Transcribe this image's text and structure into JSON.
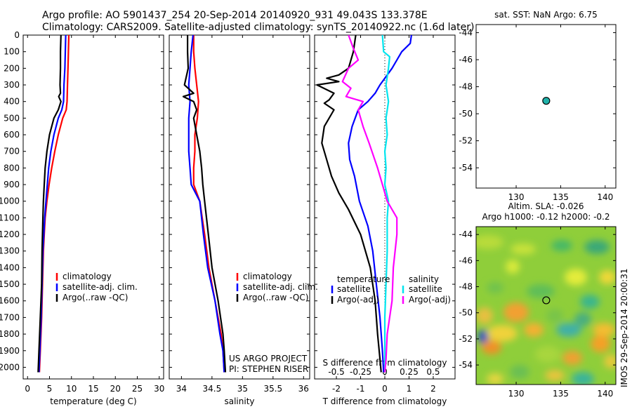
{
  "header": {
    "line1": "Argo profile: AO 5901437_254 20-Sep-2014 20140920_931 49.043S 133.378E",
    "line2": "Climatology: CARS2009. Satellite-adjusted climatology: synTS_20140922.nc (1.6d later)"
  },
  "colors": {
    "climatology": "#ff0000",
    "satellite": "#0000ff",
    "argo": "#000000",
    "sal_satellite": "#00e5ee",
    "sal_argo": "#ff00ff",
    "marker": "#20b2aa"
  },
  "depth_ticks": [
    "0",
    "100",
    "200",
    "300",
    "400",
    "500",
    "600",
    "700",
    "800",
    "900",
    "1000",
    "1100",
    "1200",
    "1300",
    "1400",
    "1500",
    "1600",
    "1700",
    "1800",
    "1900",
    "2000"
  ],
  "chart_data": [
    {
      "type": "line",
      "id": "temperature",
      "xlabel": "temperature (deg C)",
      "x_ticks": [
        "0",
        "5",
        "10",
        "15",
        "20",
        "25",
        "30"
      ],
      "xlim": [
        -1,
        31
      ],
      "ylim": [
        0,
        2070
      ],
      "legend": {
        "position": "lower-left",
        "entries": [
          "climatology",
          "satellite-adj. clim.",
          "Argo(..raw -QC)"
        ]
      },
      "series": [
        {
          "name": "climatology",
          "color": "red",
          "points": [
            [
              9.4,
              0
            ],
            [
              9.3,
              100
            ],
            [
              9.2,
              200
            ],
            [
              9.1,
              300
            ],
            [
              9.0,
              400
            ],
            [
              8.8,
              450
            ],
            [
              8.0,
              500
            ],
            [
              7.0,
              600
            ],
            [
              6.2,
              700
            ],
            [
              5.5,
              800
            ],
            [
              4.9,
              900
            ],
            [
              4.4,
              1000
            ],
            [
              4.0,
              1100
            ],
            [
              3.8,
              1200
            ],
            [
              3.6,
              1300
            ],
            [
              3.4,
              1500
            ],
            [
              3.2,
              1700
            ],
            [
              2.9,
              1900
            ],
            [
              2.7,
              2030
            ]
          ]
        },
        {
          "name": "satellite-adj. clim.",
          "color": "blue",
          "points": [
            [
              8.7,
              0
            ],
            [
              8.6,
              100
            ],
            [
              8.5,
              200
            ],
            [
              8.3,
              300
            ],
            [
              8.2,
              400
            ],
            [
              7.8,
              450
            ],
            [
              7.0,
              500
            ],
            [
              6.0,
              600
            ],
            [
              5.3,
              700
            ],
            [
              4.8,
              800
            ],
            [
              4.5,
              900
            ],
            [
              4.2,
              1000
            ],
            [
              3.9,
              1100
            ],
            [
              3.7,
              1200
            ],
            [
              3.5,
              1300
            ],
            [
              3.3,
              1500
            ],
            [
              3.1,
              1700
            ],
            [
              2.8,
              1900
            ],
            [
              2.6,
              2030
            ]
          ]
        },
        {
          "name": "Argo(..raw -QC)",
          "color": "black",
          "points": [
            [
              7.6,
              0
            ],
            [
              7.5,
              100
            ],
            [
              7.5,
              200
            ],
            [
              7.4,
              300
            ],
            [
              7.5,
              350
            ],
            [
              7.1,
              370
            ],
            [
              7.6,
              400
            ],
            [
              7.0,
              450
            ],
            [
              6.0,
              500
            ],
            [
              5.0,
              600
            ],
            [
              4.4,
              700
            ],
            [
              4.0,
              800
            ],
            [
              3.8,
              900
            ],
            [
              3.6,
              1000
            ],
            [
              3.5,
              1100
            ],
            [
              3.4,
              1200
            ],
            [
              3.3,
              1300
            ],
            [
              3.2,
              1500
            ],
            [
              2.9,
              1700
            ],
            [
              2.6,
              1900
            ],
            [
              2.4,
              2030
            ]
          ]
        }
      ]
    },
    {
      "type": "line",
      "id": "salinity",
      "xlabel": "salinity",
      "x_ticks": [
        "34",
        "34.5",
        "35",
        "35.5",
        "36"
      ],
      "xlim": [
        33.8,
        36.1
      ],
      "ylim": [
        0,
        2070
      ],
      "legend": {
        "position": "lower-right",
        "entries": [
          "climatology",
          "satellite-adj. clim.",
          "Argo(..raw -QC)"
        ]
      },
      "annotations": [
        "US ARGO PROJECT",
        "PI: STEPHEN RISER"
      ],
      "series": [
        {
          "name": "climatology",
          "color": "red",
          "points": [
            [
              34.2,
              0
            ],
            [
              34.2,
              100
            ],
            [
              34.22,
              200
            ],
            [
              34.25,
              300
            ],
            [
              34.28,
              400
            ],
            [
              34.26,
              500
            ],
            [
              34.22,
              600
            ],
            [
              34.22,
              700
            ],
            [
              34.2,
              800
            ],
            [
              34.2,
              900
            ],
            [
              34.3,
              1000
            ],
            [
              34.38,
              1200
            ],
            [
              34.45,
              1400
            ],
            [
              34.55,
              1600
            ],
            [
              34.65,
              1800
            ],
            [
              34.68,
              1900
            ],
            [
              34.7,
              2030
            ]
          ]
        },
        {
          "name": "satellite-adj. clim.",
          "color": "blue",
          "points": [
            [
              34.19,
              0
            ],
            [
              34.16,
              100
            ],
            [
              34.14,
              200
            ],
            [
              34.12,
              300
            ],
            [
              34.14,
              400
            ],
            [
              34.12,
              500
            ],
            [
              34.12,
              600
            ],
            [
              34.12,
              700
            ],
            [
              34.14,
              800
            ],
            [
              34.16,
              900
            ],
            [
              34.3,
              1000
            ],
            [
              34.36,
              1200
            ],
            [
              34.43,
              1400
            ],
            [
              34.55,
              1600
            ],
            [
              34.63,
              1800
            ],
            [
              34.68,
              1900
            ],
            [
              34.7,
              2030
            ]
          ]
        },
        {
          "name": "Argo(..raw -QC)",
          "color": "black",
          "points": [
            [
              34.1,
              0
            ],
            [
              34.1,
              100
            ],
            [
              34.11,
              200
            ],
            [
              34.05,
              300
            ],
            [
              34.2,
              350
            ],
            [
              34.03,
              370
            ],
            [
              34.2,
              400
            ],
            [
              34.25,
              450
            ],
            [
              34.2,
              500
            ],
            [
              34.25,
              600
            ],
            [
              34.3,
              700
            ],
            [
              34.33,
              800
            ],
            [
              34.35,
              900
            ],
            [
              34.38,
              1000
            ],
            [
              34.44,
              1200
            ],
            [
              34.5,
              1400
            ],
            [
              34.6,
              1600
            ],
            [
              34.68,
              1800
            ],
            [
              34.7,
              1900
            ],
            [
              34.72,
              2030
            ]
          ]
        }
      ]
    },
    {
      "type": "line",
      "id": "difference",
      "xlabel": "T difference from climatology",
      "x2label": "S difference from climatology",
      "x_ticks": [
        "-2",
        "-1",
        "0",
        "1",
        "2"
      ],
      "x2_ticks": [
        "-0.5",
        "-0.25",
        "0",
        "0.25",
        "0.5"
      ],
      "xlim": [
        -2.9,
        2.9
      ],
      "ylim": [
        0,
        2070
      ],
      "legend": {
        "position": "lower",
        "temperature_title": "temperature",
        "salinity_title": "salinity",
        "t_entries": [
          "satellite",
          "Argo(-adj)"
        ],
        "s_entries": [
          "satellite",
          "Argo(-adj)"
        ]
      },
      "series": [
        {
          "name": "temperature satellite",
          "color": "blue",
          "points": [
            [
              1.1,
              0
            ],
            [
              1.05,
              50
            ],
            [
              0.7,
              100
            ],
            [
              0.5,
              150
            ],
            [
              0.3,
              200
            ],
            [
              -0.2,
              300
            ],
            [
              -0.4,
              350
            ],
            [
              -0.7,
              400
            ],
            [
              -1.1,
              450
            ],
            [
              -1.35,
              550
            ],
            [
              -1.5,
              650
            ],
            [
              -1.45,
              750
            ],
            [
              -1.25,
              850
            ],
            [
              -1.05,
              1000
            ],
            [
              -0.7,
              1150
            ],
            [
              -0.5,
              1300
            ],
            [
              -0.35,
              1500
            ],
            [
              -0.2,
              1700
            ],
            [
              -0.1,
              1900
            ],
            [
              -0.05,
              2030
            ]
          ]
        },
        {
          "name": "temperature Argo(-adj)",
          "color": "black",
          "points": [
            [
              -1.2,
              0
            ],
            [
              -1.3,
              100
            ],
            [
              -1.5,
              200
            ],
            [
              -1.9,
              240
            ],
            [
              -2.4,
              260
            ],
            [
              -1.9,
              280
            ],
            [
              -2.8,
              300
            ],
            [
              -2.1,
              350
            ],
            [
              -2.3,
              390
            ],
            [
              -2.5,
              410
            ],
            [
              -2.1,
              450
            ],
            [
              -2.5,
              550
            ],
            [
              -2.6,
              650
            ],
            [
              -2.4,
              750
            ],
            [
              -2.2,
              850
            ],
            [
              -1.9,
              950
            ],
            [
              -1.5,
              1050
            ],
            [
              -1.0,
              1200
            ],
            [
              -0.6,
              1400
            ],
            [
              -0.4,
              1600
            ],
            [
              -0.3,
              1800
            ],
            [
              -0.2,
              1950
            ],
            [
              -0.15,
              2030
            ]
          ]
        },
        {
          "name": "salinity satellite",
          "color": "cyan",
          "points": [
            [
              -0.1,
              0
            ],
            [
              -0.05,
              100
            ],
            [
              0.2,
              130
            ],
            [
              0.15,
              200
            ],
            [
              0.05,
              300
            ],
            [
              0.15,
              400
            ],
            [
              0.05,
              500
            ],
            [
              0.1,
              600
            ],
            [
              0.0,
              700
            ],
            [
              0.05,
              800
            ],
            [
              0.0,
              900
            ],
            [
              0.15,
              1000
            ],
            [
              0.1,
              1100
            ],
            [
              0.1,
              1300
            ],
            [
              0.05,
              1500
            ],
            [
              0.0,
              1700
            ],
            [
              0.0,
              1900
            ],
            [
              0.0,
              2030
            ]
          ]
        },
        {
          "name": "salinity Argo(-adj)",
          "color": "magenta",
          "points": [
            [
              -1.5,
              0
            ],
            [
              -1.3,
              80
            ],
            [
              -1.1,
              150
            ],
            [
              -1.5,
              200
            ],
            [
              -1.75,
              280
            ],
            [
              -1.4,
              320
            ],
            [
              -1.6,
              370
            ],
            [
              -0.9,
              400
            ],
            [
              -1.1,
              450
            ],
            [
              -0.9,
              550
            ],
            [
              -0.65,
              650
            ],
            [
              -0.3,
              800
            ],
            [
              -0.1,
              900
            ],
            [
              0.1,
              1000
            ],
            [
              0.5,
              1100
            ],
            [
              0.5,
              1200
            ],
            [
              0.35,
              1400
            ],
            [
              0.3,
              1600
            ],
            [
              0.1,
              1800
            ],
            [
              0.05,
              1950
            ],
            [
              0.0,
              2030
            ]
          ]
        }
      ]
    },
    {
      "type": "scatter",
      "id": "sst-map",
      "title": "sat. SST: NaN Argo: 6.75",
      "x_ticks": [
        "130",
        "135",
        "140"
      ],
      "y_ticks": [
        "-44",
        "-46",
        "-48",
        "-50",
        "-52",
        "-54"
      ],
      "xlim": [
        125.5,
        141.2
      ],
      "ylim": [
        -55.5,
        -43.4
      ],
      "points": [
        [
          133.378,
          -49.043
        ]
      ]
    },
    {
      "type": "heatmap",
      "id": "sla-map",
      "title1": "Altim. SLA: -0.026",
      "title2": "Argo h1000: -0.12 h2000: -0.2",
      "x_ticks": [
        "130",
        "135",
        "140"
      ],
      "y_ticks": [
        "-44",
        "-46",
        "-48",
        "-50",
        "-52",
        "-54"
      ],
      "xlim": [
        125.5,
        141.2
      ],
      "ylim": [
        -55.5,
        -43.4
      ],
      "points": [
        [
          133.378,
          -49.043
        ]
      ],
      "side_label": "IMOS 29-Sep-2014 20:00:31"
    }
  ]
}
